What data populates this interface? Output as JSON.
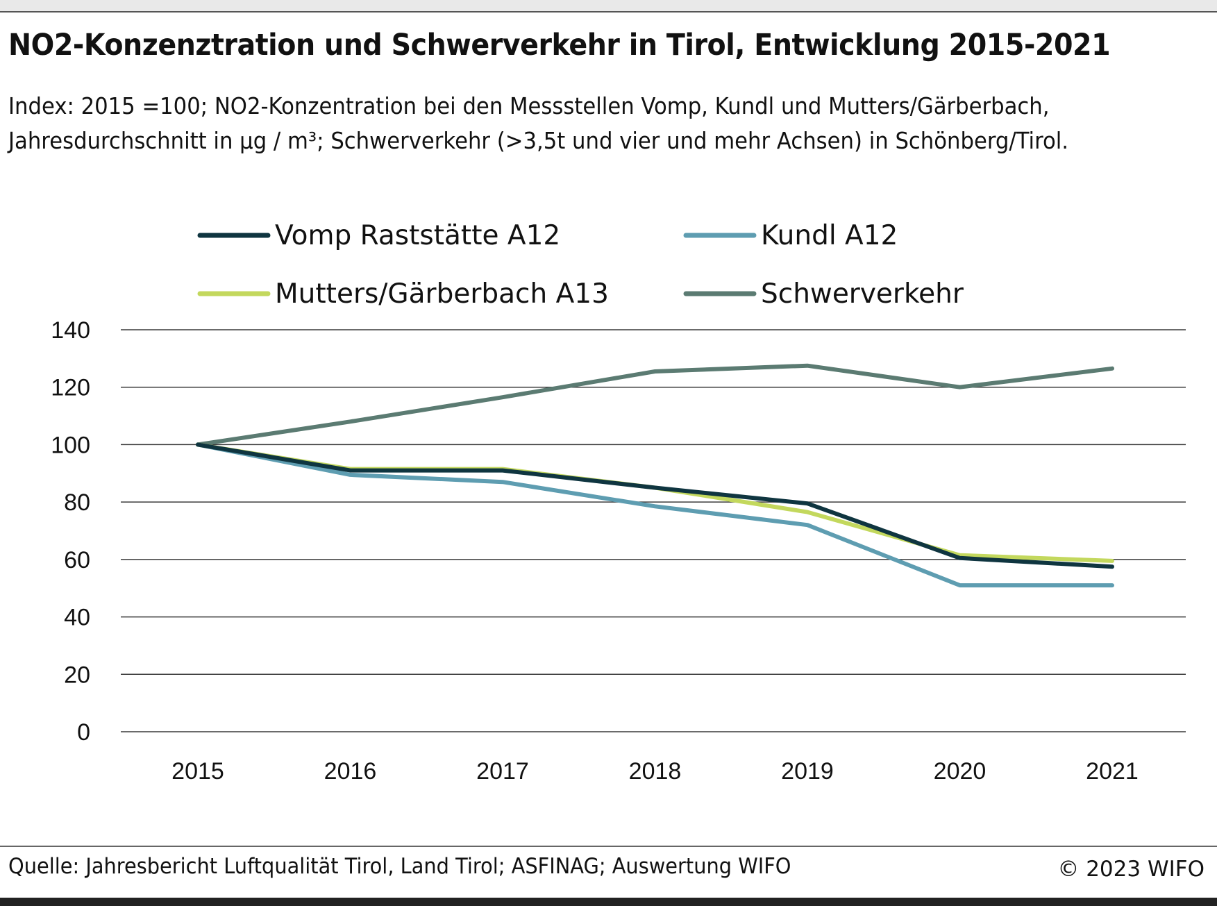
{
  "header": {
    "title": "NO2-Konzenztration und Schwerverkehr in Tirol, Entwicklung 2015-2021",
    "subtitle_line1": "Index: 2015 =100;  NO2-Konzentration bei den Messstellen Vomp, Kundl und Mutters/Gärberbach,",
    "subtitle_line2": "Jahresdurchschnitt in µg / m³; Schwerverkehr (>3,5t und vier und mehr Achsen) in Schönberg/Tirol."
  },
  "footer": {
    "source": "Quelle: Jahresbericht Luftqualität Tirol, Land Tirol; ASFINAG; Auswertung WIFO",
    "copyright": "© 2023 WIFO"
  },
  "chart_data": {
    "type": "line",
    "x": [
      "2015",
      "2016",
      "2017",
      "2018",
      "2019",
      "2020",
      "2021"
    ],
    "ylim": [
      0,
      140
    ],
    "yticks": [
      0,
      20,
      40,
      60,
      80,
      100,
      120,
      140
    ],
    "grid": true,
    "legend_position": "top",
    "series": [
      {
        "name": "Vomp Raststätte A12",
        "color": "#0f3540",
        "values": [
          100,
          91,
          91,
          85,
          79.5,
          60.5,
          57.5
        ]
      },
      {
        "name": "Kundl A12",
        "color": "#5e9db1",
        "values": [
          100,
          89.5,
          87,
          78.5,
          72,
          51,
          51
        ]
      },
      {
        "name": "Mutters/Gärberbach A13",
        "color": "#c3d85d",
        "values": [
          100,
          91.5,
          91.5,
          85,
          76.5,
          61.5,
          59.5
        ]
      },
      {
        "name": "Schwerverkehr",
        "color": "#5b7b72",
        "values": [
          100,
          108,
          116.5,
          125.5,
          127.5,
          120,
          126.5
        ]
      }
    ]
  }
}
